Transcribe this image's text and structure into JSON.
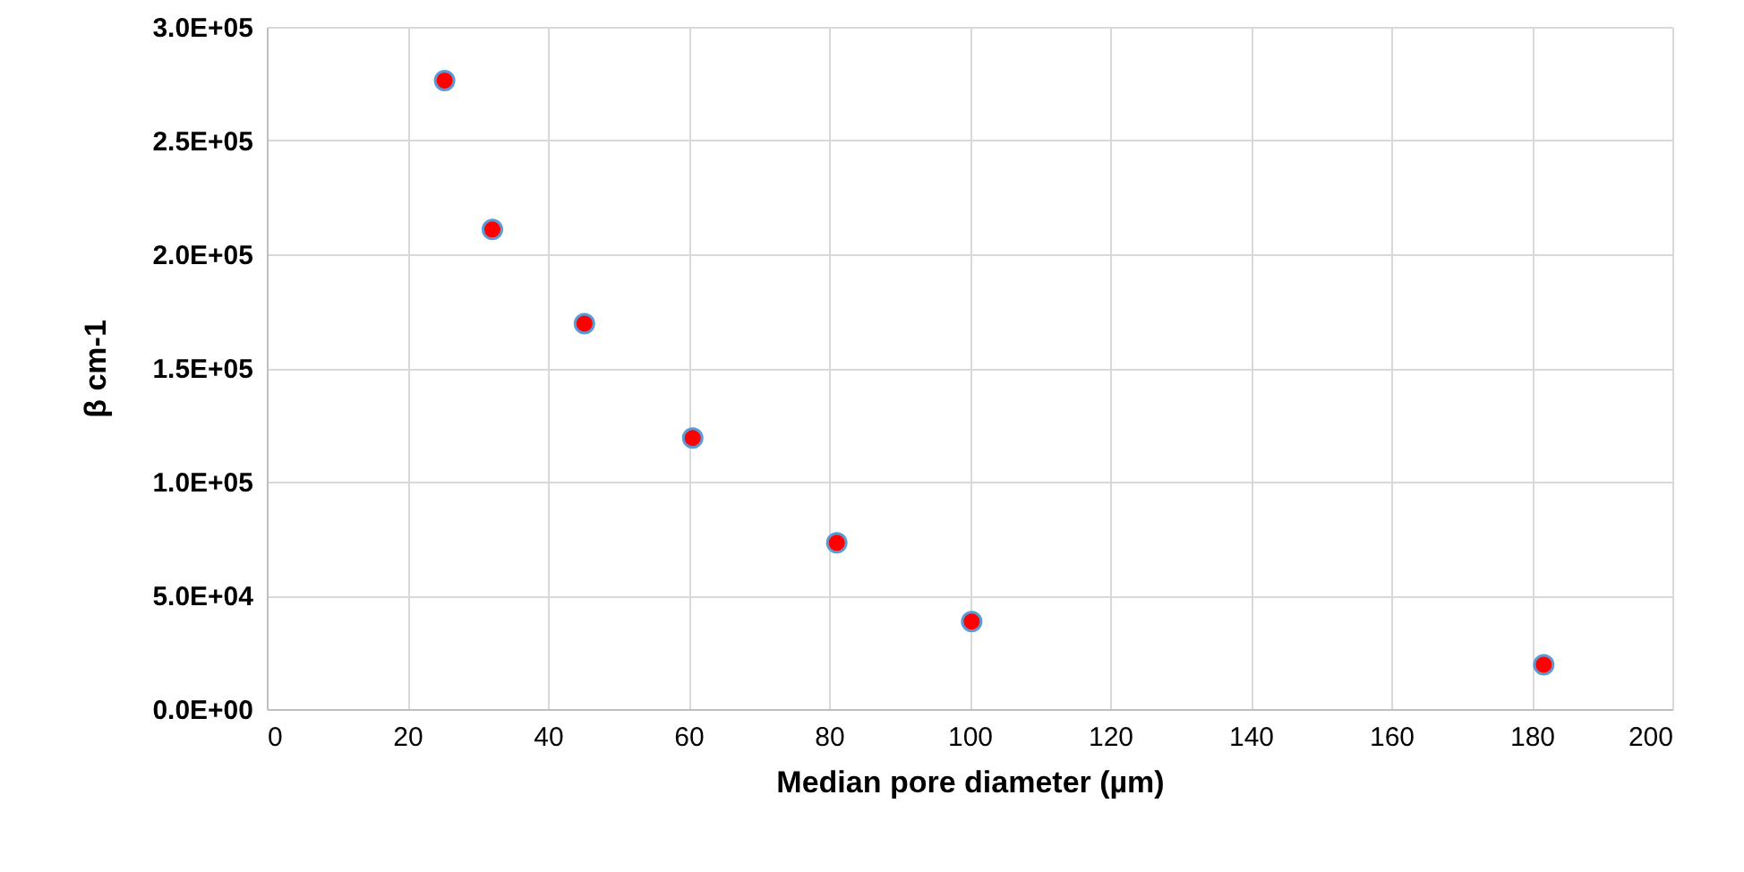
{
  "chart_data": {
    "type": "scatter",
    "xlabel": "Median pore diameter (µm)",
    "ylabel": "β cm-1",
    "x": [
      25.3,
      32.1,
      45.2,
      60.6,
      81.1,
      100.3,
      181.7
    ],
    "series": [
      {
        "color": "#ff0000",
        "values": [
          276400,
          210900,
          169500,
          119200,
          73100,
          38500,
          19500
        ]
      }
    ],
    "xlim": [
      0,
      200
    ],
    "xticks": [
      0,
      20,
      40,
      60,
      80,
      100,
      120,
      140,
      160,
      180,
      200
    ],
    "ylim": [
      0,
      300000
    ],
    "yticks": [
      {
        "value": 0,
        "label": "0.0E+00"
      },
      {
        "value": 50000,
        "label": "5.0E+04"
      },
      {
        "value": 100000,
        "label": "1.0E+05"
      },
      {
        "value": 150000,
        "label": "1.5E+05"
      },
      {
        "value": 200000,
        "label": "2.0E+05"
      },
      {
        "value": 250000,
        "label": "2.5E+05"
      },
      {
        "value": 300000,
        "label": "3.0E+05"
      }
    ],
    "grid": true,
    "marker": "circle",
    "legend": false
  }
}
